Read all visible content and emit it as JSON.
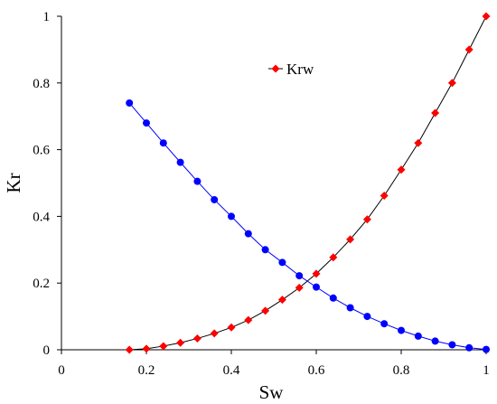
{
  "chart_data": {
    "type": "scatter",
    "xlabel": "Sw",
    "ylabel": "Kr",
    "xlim": [
      0,
      1
    ],
    "ylim": [
      0,
      1
    ],
    "x_ticks": [
      "0",
      "0.2",
      "0.4",
      "0.6",
      "0.8",
      "1"
    ],
    "y_ticks": [
      "0",
      "0.2",
      "0.4",
      "0.6",
      "0.8",
      "1"
    ],
    "grid": false,
    "legend": {
      "placement": "top-center",
      "entries": [
        "Krw"
      ]
    },
    "series": [
      {
        "name": "Krw",
        "marker": "diamond",
        "color": "#ff0000",
        "line_color": "#000000",
        "x": [
          0.16,
          0.2,
          0.24,
          0.28,
          0.32,
          0.36,
          0.4,
          0.44,
          0.48,
          0.52,
          0.56,
          0.6,
          0.64,
          0.68,
          0.72,
          0.76,
          0.8,
          0.84,
          0.88,
          0.92,
          0.96,
          1.0
        ],
        "y": [
          0.0,
          0.003,
          0.011,
          0.021,
          0.034,
          0.049,
          0.067,
          0.089,
          0.117,
          0.15,
          0.186,
          0.228,
          0.277,
          0.331,
          0.391,
          0.462,
          0.54,
          0.62,
          0.71,
          0.8,
          0.9,
          1.0
        ]
      },
      {
        "marker": "circle",
        "color": "#0000ff",
        "line_color": "#0000ff",
        "x": [
          0.16,
          0.2,
          0.24,
          0.28,
          0.32,
          0.36,
          0.4,
          0.44,
          0.48,
          0.52,
          0.56,
          0.6,
          0.64,
          0.68,
          0.72,
          0.76,
          0.8,
          0.84,
          0.88,
          0.92,
          0.96,
          1.0
        ],
        "y": [
          0.74,
          0.68,
          0.62,
          0.562,
          0.505,
          0.45,
          0.4,
          0.348,
          0.3,
          0.262,
          0.222,
          0.188,
          0.155,
          0.126,
          0.1,
          0.078,
          0.058,
          0.041,
          0.026,
          0.015,
          0.006,
          0.001
        ]
      }
    ]
  }
}
